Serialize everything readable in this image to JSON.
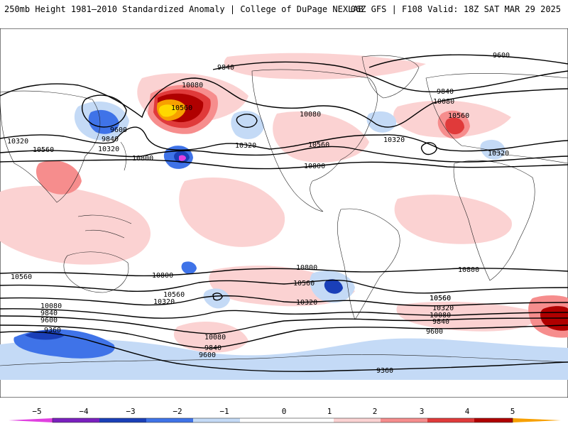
{
  "header": {
    "left": "250mb Height 1981–2010 Standardized Anomaly | College of DuPage NEXLAB",
    "right": "06Z GFS | F108 Valid: 18Z SAT MAR 29 2025"
  },
  "colors": {
    "neg5": "#e040e0",
    "neg4": "#7a1fbf",
    "neg3": "#1a3fb8",
    "neg2": "#3f73e8",
    "neg1": "#c4daf6",
    "zero": "#ffffff",
    "pos1": "#fbd2d2",
    "pos2": "#f68d8d",
    "pos3": "#e03a3a",
    "pos4": "#b00000",
    "pos5": "#f7a000",
    "pos6": "#ffd800"
  },
  "contour_labels": {
    "c9600a": "9600",
    "c9840a": "9840",
    "c9840b": "9840",
    "c10080a": "10080",
    "c10560a": "10560",
    "c10080b": "10080",
    "c10080c": "10080",
    "c10560b": "10560",
    "c9600b": "9600",
    "c9840c": "9840",
    "c10320a": "10320",
    "c10560c": "10560",
    "c10320b": "10320",
    "c10800a": "10800",
    "c10320c": "10320",
    "c10560d": "10560",
    "c10320d": "10320",
    "c10800b": "10800",
    "c10320e": "10320",
    "c10560e": "10560",
    "c10800c": "10800",
    "c10800d": "10800",
    "c10800e": "10800",
    "c10560f": "10560",
    "c10560g": "10560",
    "c10320f": "10320",
    "c10560h": "10560",
    "c10320g": "10320",
    "c10080d": "10080",
    "c9840d": "9840",
    "c9600c": "9600",
    "c9360a": "9360",
    "c10080e": "10080",
    "c9840e": "9840",
    "c9600d": "9600",
    "c10560i": "10560",
    "c10320h": "10320",
    "c10080f": "10080",
    "c9840f": "9840",
    "c9600e": "9600",
    "c9360b": "9360"
  },
  "colorbar": {
    "ticks": [
      "−5",
      "−4",
      "−3",
      "−2",
      "−1",
      "0",
      "1",
      "2",
      "3",
      "4",
      "5"
    ]
  }
}
